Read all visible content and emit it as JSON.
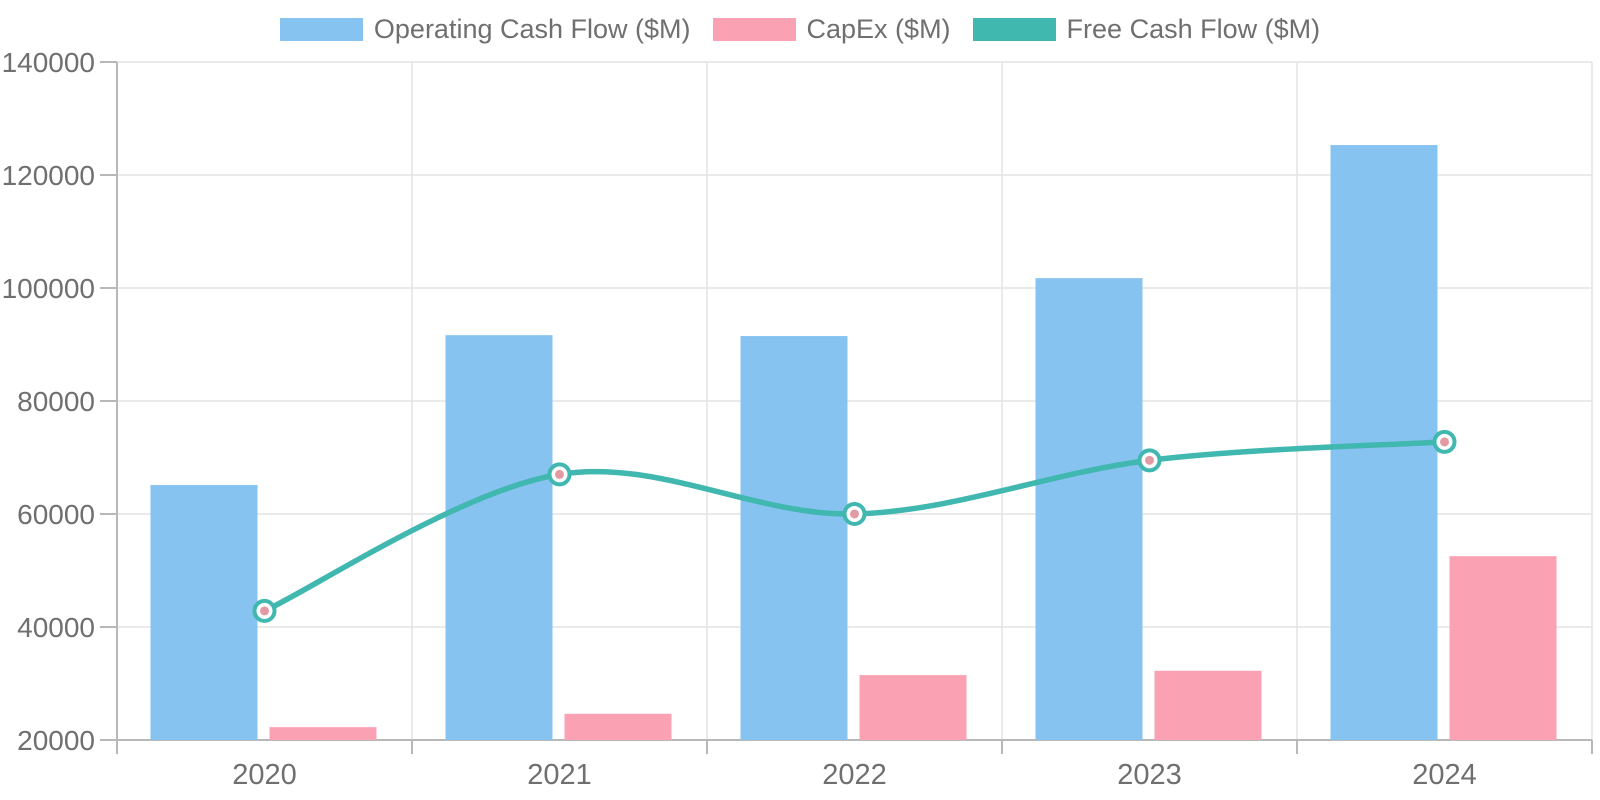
{
  "chart_data": {
    "type": "combo",
    "title": "",
    "categories": [
      "2020",
      "2021",
      "2022",
      "2023",
      "2024"
    ],
    "series": [
      {
        "name": "Operating Cash Flow ($M)",
        "kind": "bar",
        "color": "#87c3f0",
        "values": [
          65124,
          91652,
          91495,
          101746,
          125299
        ]
      },
      {
        "name": "CapEx ($M)",
        "kind": "bar",
        "color": "#fba1b4",
        "values": [
          22281,
          24640,
          31485,
          32251,
          52535
        ]
      },
      {
        "name": "Free Cash Flow ($M)",
        "kind": "line",
        "color": "#40b7af",
        "marker_fill": "#ffffff",
        "marker_dot": "#e29aa5",
        "values": [
          42843,
          67012,
          60010,
          69495,
          72764
        ]
      }
    ],
    "xlabel": "",
    "ylabel": "",
    "ylim": [
      20000,
      140000
    ],
    "yticks": [
      20000,
      40000,
      60000,
      80000,
      100000,
      120000,
      140000
    ],
    "grid": true,
    "legend_position": "top-center",
    "colors": {
      "axis_line": "#b8b8b8",
      "grid_line": "#e4e4e4",
      "tick_label": "#6f6f6f",
      "background": "#ffffff"
    }
  }
}
